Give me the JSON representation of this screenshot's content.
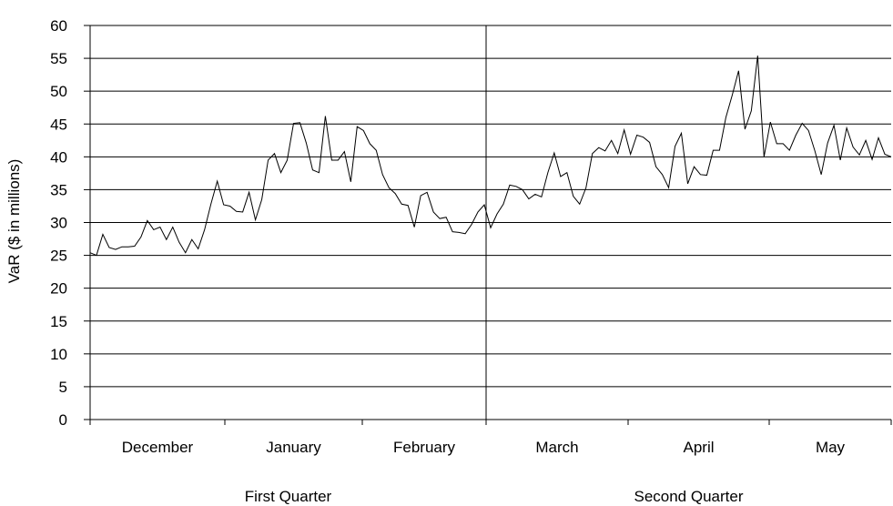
{
  "chart_data": {
    "type": "line",
    "title": "",
    "ylabel": "VaR ($ in millions)",
    "xlabel": "",
    "ylim": [
      0,
      60
    ],
    "yticks": [
      0,
      5,
      10,
      15,
      20,
      25,
      30,
      35,
      40,
      45,
      50,
      55,
      60
    ],
    "grid": "horizontal",
    "months": [
      "December",
      "January",
      "February",
      "March",
      "April",
      "May"
    ],
    "quarters": [
      "First Quarter",
      "Second Quarter"
    ],
    "series": [
      {
        "values": [
          25.4,
          25.0,
          28.2,
          26.2,
          25.9,
          26.3,
          26.3,
          26.4,
          27.8,
          30.3,
          28.9,
          29.3,
          27.4,
          29.3,
          27.0,
          25.4,
          27.4,
          26.0,
          28.9,
          32.8,
          36.3,
          32.7,
          32.5,
          31.7,
          31.6,
          34.6,
          30.4,
          33.5,
          39.5,
          40.5,
          37.6,
          39.5,
          45.1,
          45.2,
          42.1,
          38.0,
          37.6,
          46.2,
          39.5,
          39.5,
          40.8,
          36.2,
          44.6,
          44.0,
          42.0,
          41.0,
          37.3,
          35.3,
          34.4,
          32.8,
          32.6,
          29.3,
          34.1,
          34.6,
          31.6,
          30.6,
          30.8,
          28.6,
          28.5,
          28.3,
          29.7,
          31.6,
          32.7,
          29.2,
          31.3,
          32.8,
          35.7,
          35.5,
          35.0,
          33.6,
          34.3,
          33.9,
          37.6,
          40.6,
          37.0,
          37.6,
          34.0,
          32.8,
          35.3,
          40.5,
          41.4,
          40.9,
          42.5,
          40.5,
          44.1,
          40.4,
          43.3,
          43.0,
          42.2,
          38.5,
          37.3,
          35.3,
          41.6,
          43.6,
          35.9,
          38.5,
          37.3,
          37.2,
          41.0,
          41.0,
          46.0,
          49.4,
          53.1,
          44.2,
          47.0,
          55.4,
          40.0,
          45.3,
          42.0,
          42.0,
          41.0,
          43.3,
          45.1,
          44.0,
          40.9,
          37.3,
          42.1,
          44.8,
          39.5,
          44.4,
          41.5,
          40.3,
          42.5,
          39.6,
          42.9,
          40.4,
          40.0
        ]
      }
    ]
  }
}
